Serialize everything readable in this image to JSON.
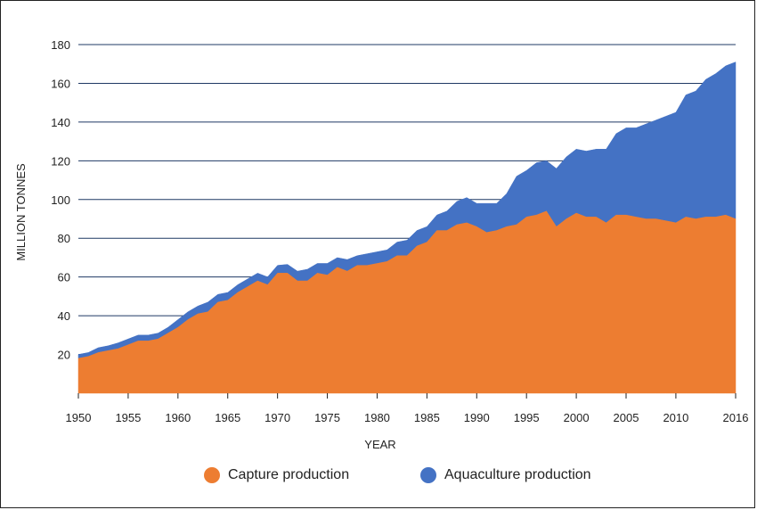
{
  "chart_data": {
    "type": "area",
    "stacked": true,
    "title": "",
    "xlabel": "YEAR",
    "ylabel": "MILLION TONNES",
    "xlim": [
      1950,
      2016
    ],
    "ylim": [
      0,
      180
    ],
    "x_ticks": [
      "1950",
      "1955",
      "1960",
      "1965",
      "1970",
      "1975",
      "1980",
      "1985",
      "1990",
      "1995",
      "2000",
      "2005",
      "2010",
      "2016"
    ],
    "y_ticks": [
      "20",
      "40",
      "60",
      "80",
      "100",
      "120",
      "140",
      "160",
      "180"
    ],
    "grid": "horizontal",
    "legend_position": "bottom",
    "x": [
      1950,
      1951,
      1952,
      1953,
      1954,
      1955,
      1956,
      1957,
      1958,
      1959,
      1960,
      1961,
      1962,
      1963,
      1964,
      1965,
      1966,
      1967,
      1968,
      1969,
      1970,
      1971,
      1972,
      1973,
      1974,
      1975,
      1976,
      1977,
      1978,
      1979,
      1980,
      1981,
      1982,
      1983,
      1984,
      1985,
      1986,
      1987,
      1988,
      1989,
      1990,
      1991,
      1992,
      1993,
      1994,
      1995,
      1996,
      1997,
      1998,
      1999,
      2000,
      2001,
      2002,
      2003,
      2004,
      2005,
      2006,
      2007,
      2008,
      2009,
      2010,
      2011,
      2012,
      2013,
      2014,
      2015,
      2016
    ],
    "series": [
      {
        "name": "Capture production",
        "color": "#ED7D31",
        "values": [
          18,
          19,
          21,
          22,
          23,
          25,
          27,
          27,
          28,
          31,
          34,
          38,
          41,
          42,
          47,
          48,
          52,
          55,
          58,
          56,
          62,
          62,
          58,
          58,
          62,
          61,
          65,
          63,
          66,
          66,
          67,
          68,
          71,
          71,
          76,
          78,
          84,
          84,
          87,
          88,
          86,
          83,
          84,
          86,
          87,
          91,
          92,
          94,
          86,
          90,
          93,
          91,
          91,
          88,
          92,
          92,
          91,
          90,
          90,
          89,
          88,
          91,
          90,
          91,
          91,
          92,
          90
        ]
      },
      {
        "name": "Aquaculture production",
        "color": "#4472C4",
        "values": [
          2,
          2,
          2.5,
          2.5,
          3,
          3,
          3,
          3,
          3,
          3,
          4,
          4,
          4,
          5,
          4,
          4,
          4,
          4,
          4,
          4,
          4,
          4.5,
          5,
          6,
          5,
          6,
          5,
          6,
          5,
          6,
          6,
          6,
          7,
          8,
          8,
          8,
          8,
          10,
          12,
          13,
          12,
          15,
          14,
          17,
          25,
          24,
          27,
          26,
          30,
          32,
          33,
          34,
          35,
          38,
          42,
          45,
          46,
          49,
          51,
          54,
          57,
          63,
          66,
          71,
          74,
          77,
          81
        ]
      }
    ]
  }
}
